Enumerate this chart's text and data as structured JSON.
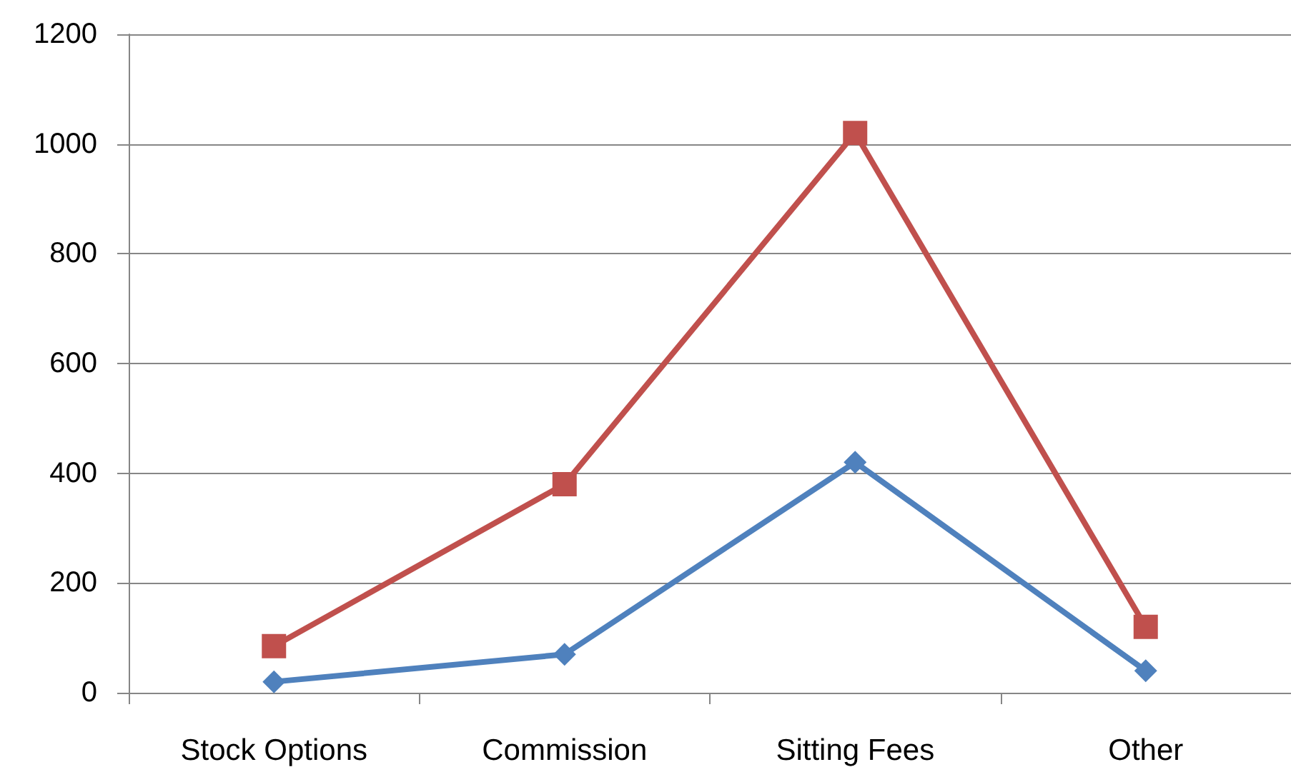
{
  "chart_data": {
    "type": "line",
    "categories": [
      "Stock Options",
      "Commission",
      "Sitting Fees",
      "Other"
    ],
    "series": [
      {
        "color": "#4f81bd",
        "marker": "diamond",
        "values": [
          20,
          70,
          420,
          40
        ]
      },
      {
        "color": "#c0504d",
        "marker": "square",
        "values": [
          85,
          380,
          1020,
          120
        ]
      }
    ],
    "ylim": [
      0,
      1200
    ],
    "yticks": [
      0,
      200,
      400,
      600,
      800,
      1000,
      1200
    ],
    "grid": "y",
    "line_style": "solid"
  }
}
